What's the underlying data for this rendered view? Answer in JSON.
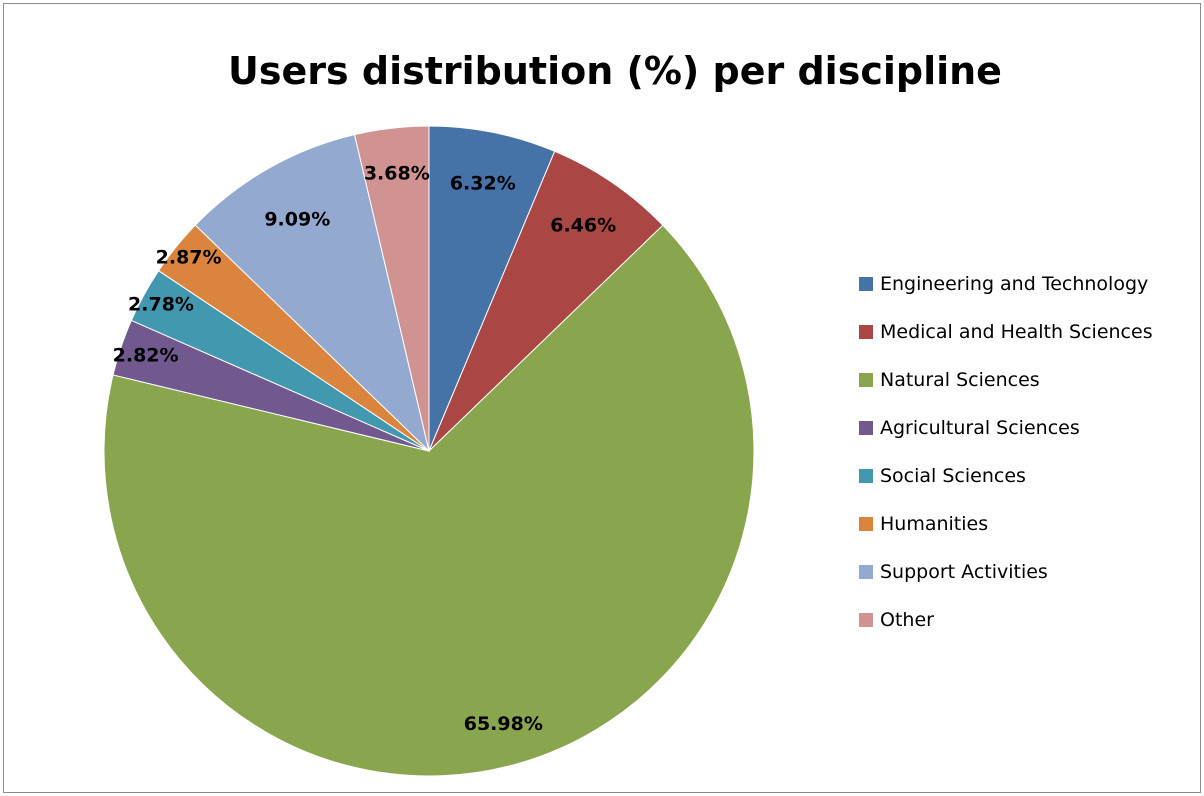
{
  "chart_data": {
    "type": "pie",
    "title": "Users distribution (%) per discipline",
    "legend_position": "right",
    "start_angle_deg": 0,
    "direction": "clockwise",
    "categories": [
      "Engineering and Technology",
      "Medical and Health Sciences",
      "Natural Sciences",
      "Agricultural Sciences",
      "Social Sciences",
      "Humanities",
      "Support Activities",
      "Other"
    ],
    "values": [
      6.32,
      6.46,
      65.98,
      2.82,
      2.78,
      2.87,
      9.09,
      3.68
    ],
    "data_labels": [
      "6.32%",
      "6.46%",
      "65.98%",
      "2.82%",
      "2.78%",
      "2.87%",
      "9.09%",
      "3.68%"
    ],
    "colors": [
      "#4572A7",
      "#AA4643",
      "#89A54E",
      "#71588F",
      "#4198AF",
      "#DB843D",
      "#93A9CF",
      "#D19392"
    ]
  }
}
